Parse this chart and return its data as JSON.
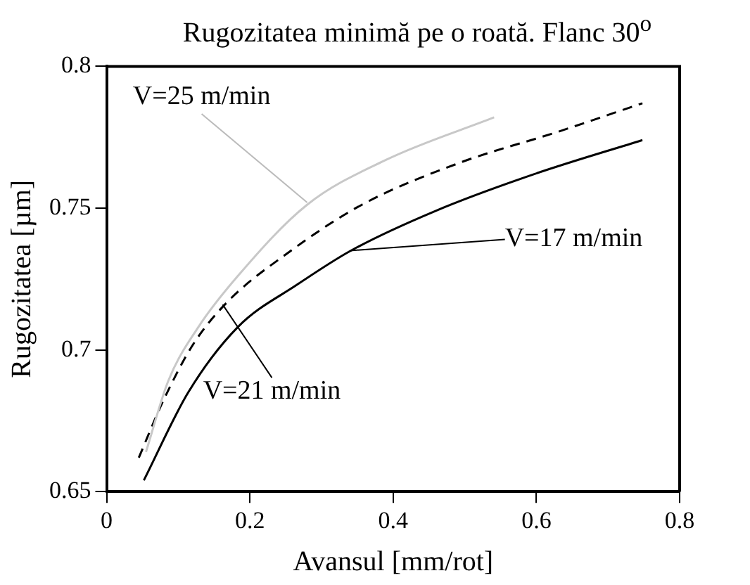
{
  "chart_data": {
    "type": "line",
    "title": "Rugozitatea minimă pe o roată. Flanc 30$^{o}$",
    "xlabel": "Avansul [mm/rot]",
    "ylabel": "Rugozitatea [µm]",
    "xlim": [
      0,
      0.8
    ],
    "xticks": [
      0,
      0.2,
      0.4,
      0.6,
      0.8
    ],
    "ylim": [
      0.65,
      0.8
    ],
    "yticks": [
      0.65,
      0.7,
      0.75,
      0.8
    ],
    "grid": false,
    "legend": false,
    "marker": "none",
    "series": [
      {
        "color": "#c8c8c8",
        "line_style": "solid",
        "x": [
          0.055,
          0.086,
          0.128,
          0.183,
          0.279,
          0.39,
          0.541
        ],
        "values": [
          0.664,
          0.689,
          0.708,
          0.726,
          0.751,
          0.767,
          0.782
        ]
      },
      {
        "color": "#000000",
        "line_style": "dashed",
        "x": [
          0.045,
          0.079,
          0.121,
          0.169,
          0.252,
          0.355,
          0.493,
          0.631,
          0.748
        ],
        "values": [
          0.662,
          0.682,
          0.702,
          0.717,
          0.734,
          0.751,
          0.766,
          0.777,
          0.787
        ]
      },
      {
        "color": "#000000",
        "line_style": "solid",
        "x": [
          0.052,
          0.114,
          0.183,
          0.266,
          0.341,
          0.459,
          0.597,
          0.748
        ],
        "values": [
          0.654,
          0.685,
          0.708,
          0.723,
          0.735,
          0.749,
          0.762,
          0.774
        ]
      }
    ],
    "annotations": [
      {
        "text": "V=25 m/min",
        "x": 0.28,
        "y": 0.752
      },
      {
        "text": "V=17 m/min",
        "x": 0.34,
        "y": 0.735
      },
      {
        "text": "V=21 m/min",
        "x": 0.162,
        "y": 0.716
      }
    ]
  }
}
